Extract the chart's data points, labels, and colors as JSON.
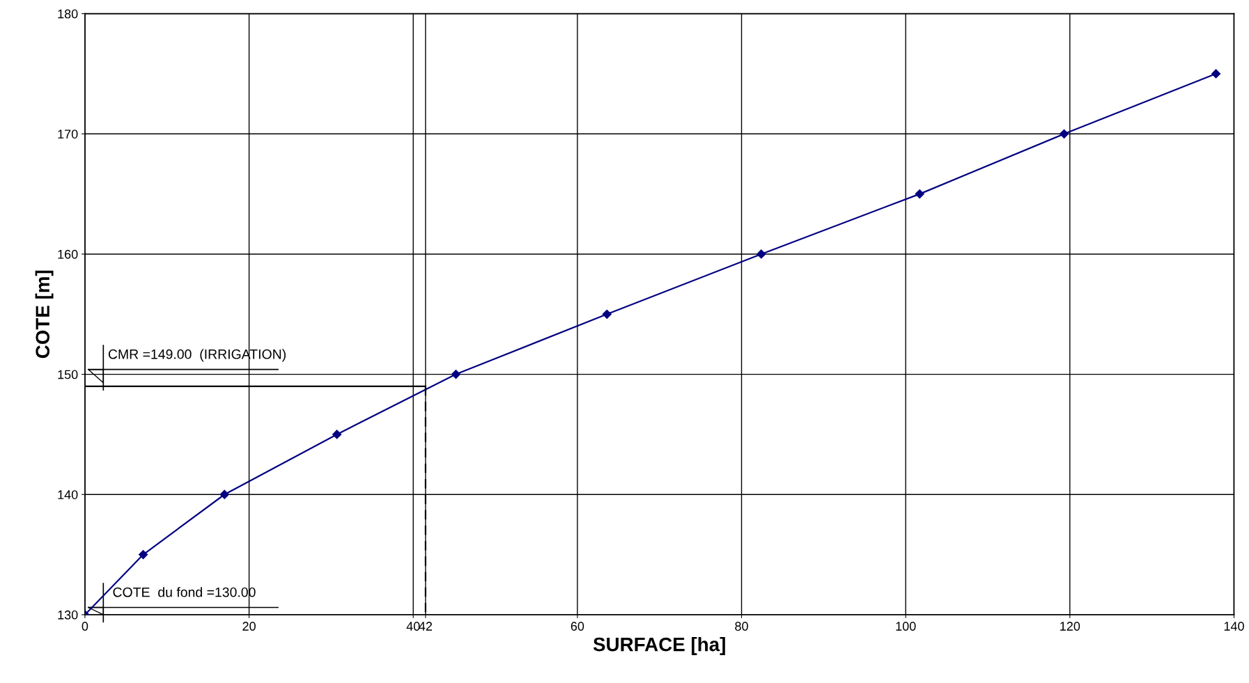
{
  "chart_data": {
    "type": "line",
    "xlabel": "SURFACE [ha]",
    "ylabel": "COTE [m]",
    "xlim": [
      0,
      140
    ],
    "ylim": [
      130,
      180
    ],
    "xticks": [
      0,
      20,
      40,
      {
        "value": 41.5,
        "label": "42"
      },
      60,
      80,
      100,
      120,
      140
    ],
    "yticks": [
      130,
      140,
      150,
      160,
      170,
      180
    ],
    "grid": true,
    "marker": "diamond",
    "legend": false,
    "series": [
      {
        "color": "#000080",
        "x": [
          0,
          7.1,
          17.0,
          30.7,
          45.2,
          63.6,
          82.4,
          101.7,
          119.3,
          137.8
        ],
        "values": [
          130,
          135,
          140,
          145,
          150,
          155,
          160,
          165,
          170,
          175
        ]
      },
      {
        "color": "#000000",
        "x": [
          0,
          41.5
        ],
        "values": [
          149,
          149
        ],
        "marker": "none"
      },
      {
        "color": "#000000",
        "x": [
          41.5,
          41.5
        ],
        "values": [
          149,
          130
        ],
        "marker": "none",
        "line_style": "dashed"
      }
    ],
    "annotations": [
      "CMR =149.00  (IRRIGATION)",
      "COTE  du fond =130.00"
    ]
  }
}
